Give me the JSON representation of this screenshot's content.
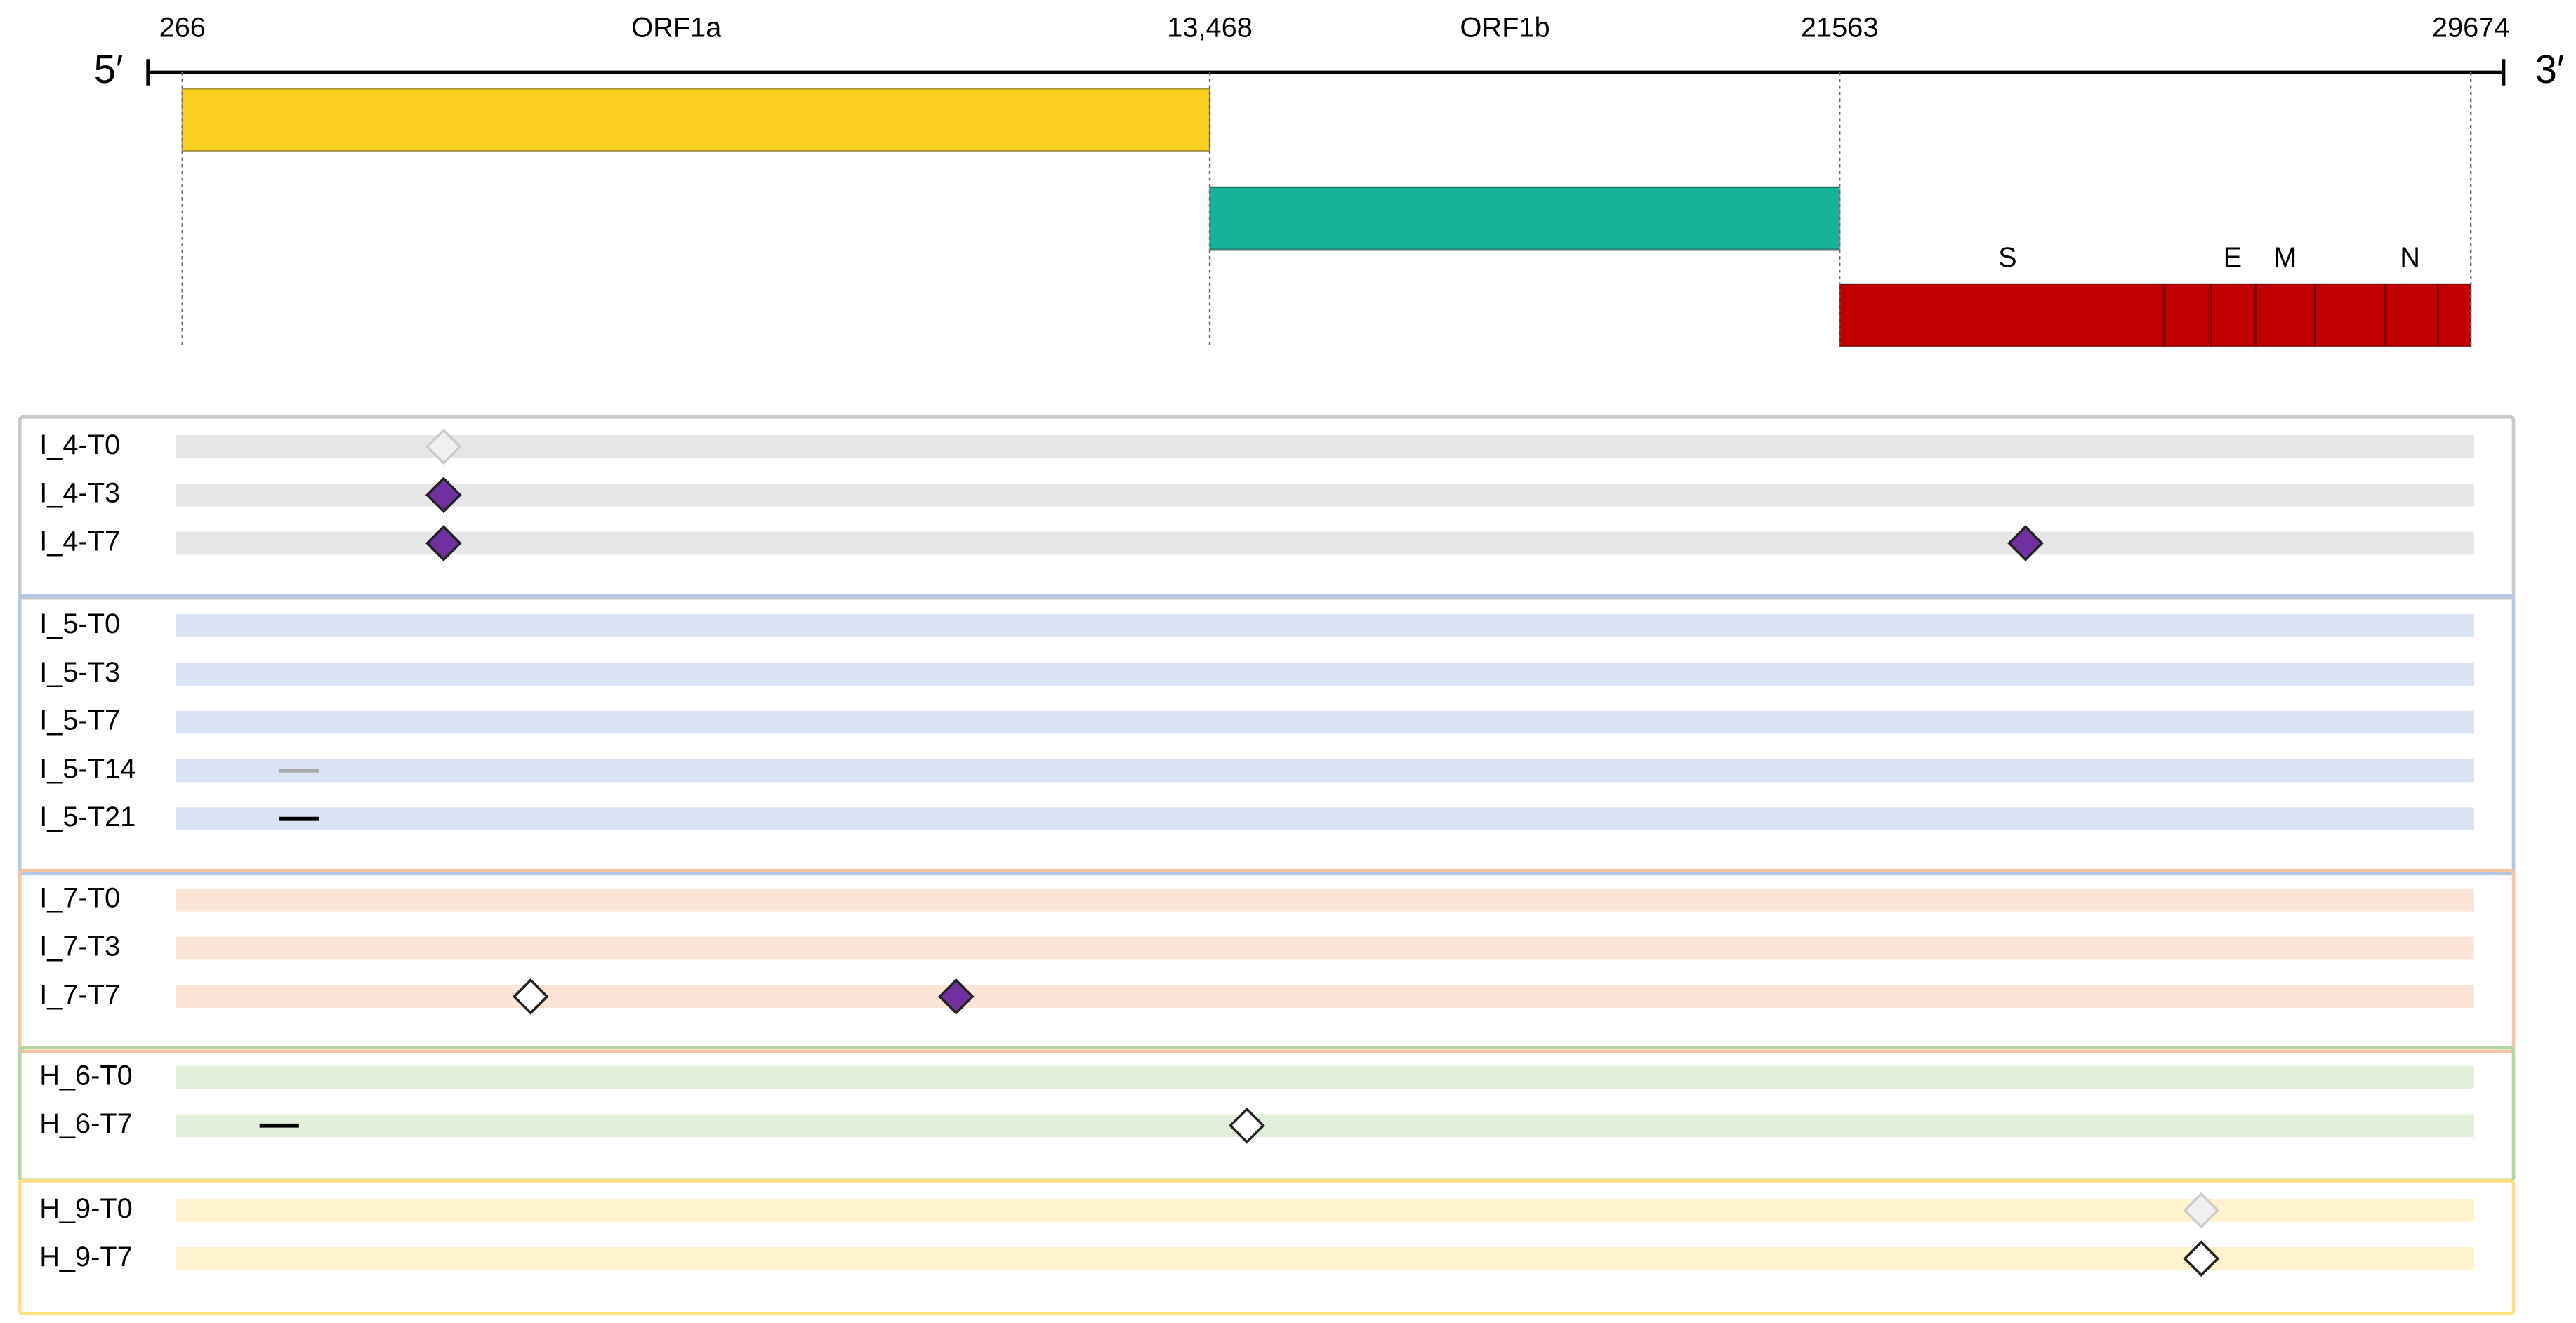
{
  "genome": {
    "five_prime": "5′",
    "three_prime": "3′",
    "start": 266,
    "end": 29674,
    "ticks": [
      266,
      {
        "value": 13468,
        "label": "13,468"
      },
      21563,
      29674
    ],
    "genes": [
      {
        "name": "ORF1a",
        "start": 266,
        "end": 13468,
        "color": "#fbd020",
        "lane": 0
      },
      {
        "name": "ORF1b",
        "start": 13468,
        "end": 21563,
        "color": "#17b398",
        "lane": 1
      },
      {
        "name": null,
        "start": 21563,
        "end": 29674,
        "color": "#c00000",
        "lane": 2
      }
    ],
    "structural_labels": [
      "S",
      "E",
      "M",
      "N"
    ]
  },
  "groups": [
    {
      "border": "#c8c8c8",
      "track": "#e6e6e6",
      "rows": [
        {
          "label": "I_4-T0",
          "marks": [
            {
              "pos": 3623,
              "style": "faded"
            }
          ]
        },
        {
          "label": "I_4-T3",
          "marks": [
            {
              "pos": 3623,
              "style": "filled"
            }
          ]
        },
        {
          "label": "I_4-T7",
          "marks": [
            {
              "pos": 3623,
              "style": "filled"
            },
            {
              "pos": 23952,
              "style": "filled"
            }
          ]
        }
      ]
    },
    {
      "border": "#b4c8e4",
      "track": "#dae3f3",
      "rows": [
        {
          "label": "I_5-T0",
          "marks": []
        },
        {
          "label": "I_5-T3",
          "marks": []
        },
        {
          "label": "I_5-T7",
          "marks": []
        },
        {
          "label": "I_5-T14",
          "marks": [
            {
              "pos": 1765,
              "style": "dash-faded"
            }
          ]
        },
        {
          "label": "I_5-T21",
          "marks": [
            {
              "pos": 1765,
              "style": "dash"
            }
          ]
        }
      ]
    },
    {
      "border": "#f4c4a4",
      "track": "#fbe5d6",
      "rows": [
        {
          "label": "I_7-T0",
          "marks": []
        },
        {
          "label": "I_7-T3",
          "marks": []
        },
        {
          "label": "I_7-T7",
          "marks": [
            {
              "pos": 4741,
              "style": "open"
            },
            {
              "pos": 10209,
              "style": "filled"
            }
          ]
        }
      ]
    },
    {
      "border": "#b4d8a0",
      "track": "#e2f0d9",
      "rows": [
        {
          "label": "H_6-T0",
          "marks": []
        },
        {
          "label": "H_6-T7",
          "marks": [
            {
              "pos": 1511,
              "style": "dash"
            },
            {
              "pos": 13945,
              "style": "open"
            }
          ]
        }
      ]
    },
    {
      "border": "#ffe080",
      "track": "#fff2cc",
      "rows": [
        {
          "label": "H_9-T0",
          "marks": [
            {
              "pos": 26210,
              "style": "faded"
            }
          ]
        },
        {
          "label": "H_9-T7",
          "marks": [
            {
              "pos": 26210,
              "style": "open"
            }
          ]
        }
      ]
    }
  ]
}
